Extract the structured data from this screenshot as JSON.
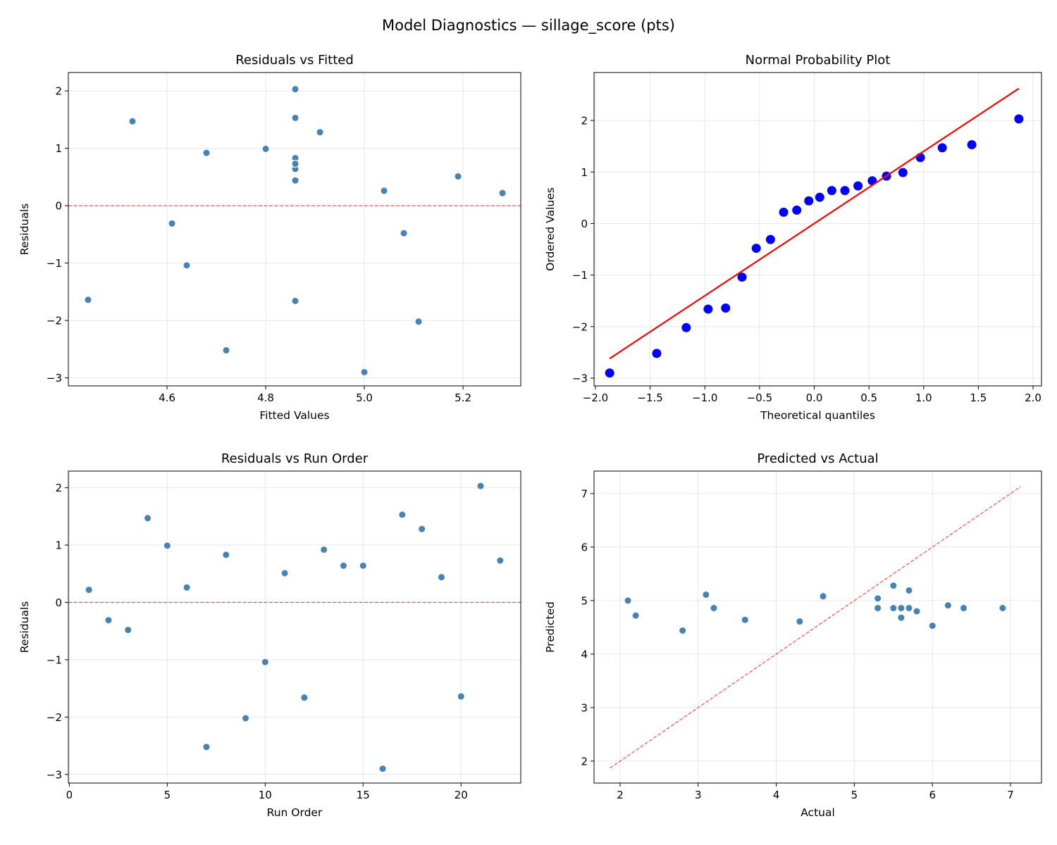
{
  "figure": {
    "suptitle": "Model Diagnostics — sillage_score (pts)"
  },
  "chart_data": [
    {
      "id": "resid_fitted",
      "type": "scatter",
      "title": "Residuals vs Fitted",
      "xlabel": "Fitted Values",
      "ylabel": "Residuals",
      "xlim": [
        4.4,
        5.317
      ],
      "ylim": [
        -3.14,
        2.32
      ],
      "xticks": [
        4.6,
        4.8,
        5.0,
        5.2
      ],
      "xtick_labels": [
        "4.6",
        "4.8",
        "5.0",
        "5.2"
      ],
      "yticks": [
        -3,
        -2,
        -1,
        0,
        1,
        2
      ],
      "ytick_labels": [
        "−3",
        "−2",
        "−1",
        "0",
        "1",
        "2"
      ],
      "grid": true,
      "marker_color": "#4682b4",
      "reference_line": {
        "type": "horizontal",
        "y": 0,
        "style": "dashed",
        "color": "#ff0000"
      },
      "x": [
        5.28,
        4.61,
        5.08,
        4.53,
        4.8,
        5.04,
        4.72,
        4.86,
        5.11,
        4.64,
        5.19,
        4.86,
        4.68,
        4.86,
        4.86,
        5.0,
        4.86,
        4.91,
        4.86,
        4.44,
        4.86,
        4.86
      ],
      "y": [
        0.22,
        -0.31,
        -0.48,
        1.47,
        0.99,
        0.26,
        -2.52,
        0.83,
        -2.02,
        -1.04,
        0.51,
        -1.66,
        0.92,
        0.64,
        0.64,
        -2.9,
        1.53,
        1.28,
        0.44,
        -1.64,
        2.03,
        0.73
      ]
    },
    {
      "id": "normal_prob",
      "type": "scatter",
      "title": "Normal Probability Plot",
      "xlabel": "Theoretical quantiles",
      "ylabel": "Ordered Values",
      "xlim": [
        -2.013,
        2.077
      ],
      "ylim": [
        -3.15,
        2.93
      ],
      "xticks": [
        -2.0,
        -1.5,
        -1.0,
        -0.5,
        0.0,
        0.5,
        1.0,
        1.5,
        2.0
      ],
      "xtick_labels": [
        "−2.0",
        "−1.5",
        "−1.0",
        "−0.5",
        "0.0",
        "0.5",
        "1.0",
        "1.5",
        "2.0"
      ],
      "yticks": [
        -3,
        -2,
        -1,
        0,
        1,
        2
      ],
      "ytick_labels": [
        "−3",
        "−2",
        "−1",
        "0",
        "1",
        "2"
      ],
      "grid": true,
      "marker_color": "#0000ff",
      "fit_line": {
        "x": [
          -1.87,
          1.87
        ],
        "y": [
          -2.62,
          2.62
        ],
        "color": "#ff0000"
      },
      "x": [
        -1.87,
        -1.44,
        -1.17,
        -0.97,
        -0.81,
        -0.66,
        -0.53,
        -0.4,
        -0.28,
        -0.16,
        -0.05,
        0.05,
        0.16,
        0.28,
        0.4,
        0.53,
        0.66,
        0.81,
        0.97,
        1.17,
        1.44,
        1.87
      ],
      "y": [
        -2.9,
        -2.52,
        -2.02,
        -1.66,
        -1.64,
        -1.04,
        -0.48,
        -0.31,
        0.22,
        0.26,
        0.44,
        0.51,
        0.64,
        0.64,
        0.73,
        0.83,
        0.92,
        0.99,
        1.28,
        1.47,
        1.53,
        2.03
      ]
    },
    {
      "id": "resid_order",
      "type": "scatter",
      "title": "Residuals vs Run Order",
      "xlabel": "Run Order",
      "ylabel": "Residuals",
      "xlim": [
        -0.05,
        23.05
      ],
      "ylim": [
        -3.15,
        2.29
      ],
      "xticks": [
        0,
        5,
        10,
        15,
        20
      ],
      "xtick_labels": [
        "0",
        "5",
        "10",
        "15",
        "20"
      ],
      "yticks": [
        -3,
        -2,
        -1,
        0,
        1,
        2
      ],
      "ytick_labels": [
        "−3",
        "−2",
        "−1",
        "0",
        "1",
        "2"
      ],
      "grid": true,
      "marker_color": "#4682b4",
      "reference_line": {
        "type": "horizontal",
        "y": 0,
        "style": "dashed",
        "color": "#ff0000"
      },
      "x": [
        1,
        2,
        3,
        4,
        5,
        6,
        7,
        8,
        9,
        10,
        11,
        12,
        13,
        14,
        15,
        16,
        17,
        18,
        19,
        20,
        21,
        22
      ],
      "y": [
        0.22,
        -0.31,
        -0.48,
        1.47,
        0.99,
        0.26,
        -2.52,
        0.83,
        -2.02,
        -1.04,
        0.51,
        -1.66,
        0.92,
        0.64,
        0.64,
        -2.9,
        1.53,
        1.28,
        0.44,
        -1.64,
        2.03,
        0.73
      ]
    },
    {
      "id": "pred_actual",
      "type": "scatter",
      "title": "Predicted vs Actual",
      "xlabel": "Actual",
      "ylabel": "Predicted",
      "xlim": [
        1.666,
        7.397
      ],
      "ylim": [
        1.59,
        7.42
      ],
      "xticks": [
        2,
        3,
        4,
        5,
        6,
        7
      ],
      "xtick_labels": [
        "2",
        "3",
        "4",
        "5",
        "6",
        "7"
      ],
      "yticks": [
        2,
        3,
        4,
        5,
        6,
        7
      ],
      "ytick_labels": [
        "2",
        "3",
        "4",
        "5",
        "6",
        "7"
      ],
      "grid": true,
      "marker_color": "#4682b4",
      "reference_line": {
        "type": "diagonal",
        "x": [
          1.87,
          7.13
        ],
        "y": [
          1.87,
          7.13
        ],
        "style": "dashed",
        "color": "#ff0000"
      },
      "x": [
        5.5,
        4.3,
        4.6,
        6.0,
        5.8,
        5.3,
        2.2,
        5.7,
        3.1,
        3.6,
        5.7,
        3.2,
        5.6,
        5.5,
        5.5,
        2.1,
        6.4,
        6.2,
        5.3,
        2.8,
        6.9,
        5.6
      ],
      "y": [
        5.28,
        4.61,
        5.08,
        4.53,
        4.8,
        5.04,
        4.72,
        4.86,
        5.11,
        4.64,
        5.19,
        4.86,
        4.68,
        4.86,
        4.86,
        5.0,
        4.86,
        4.91,
        4.86,
        4.44,
        4.86,
        4.86
      ]
    }
  ]
}
